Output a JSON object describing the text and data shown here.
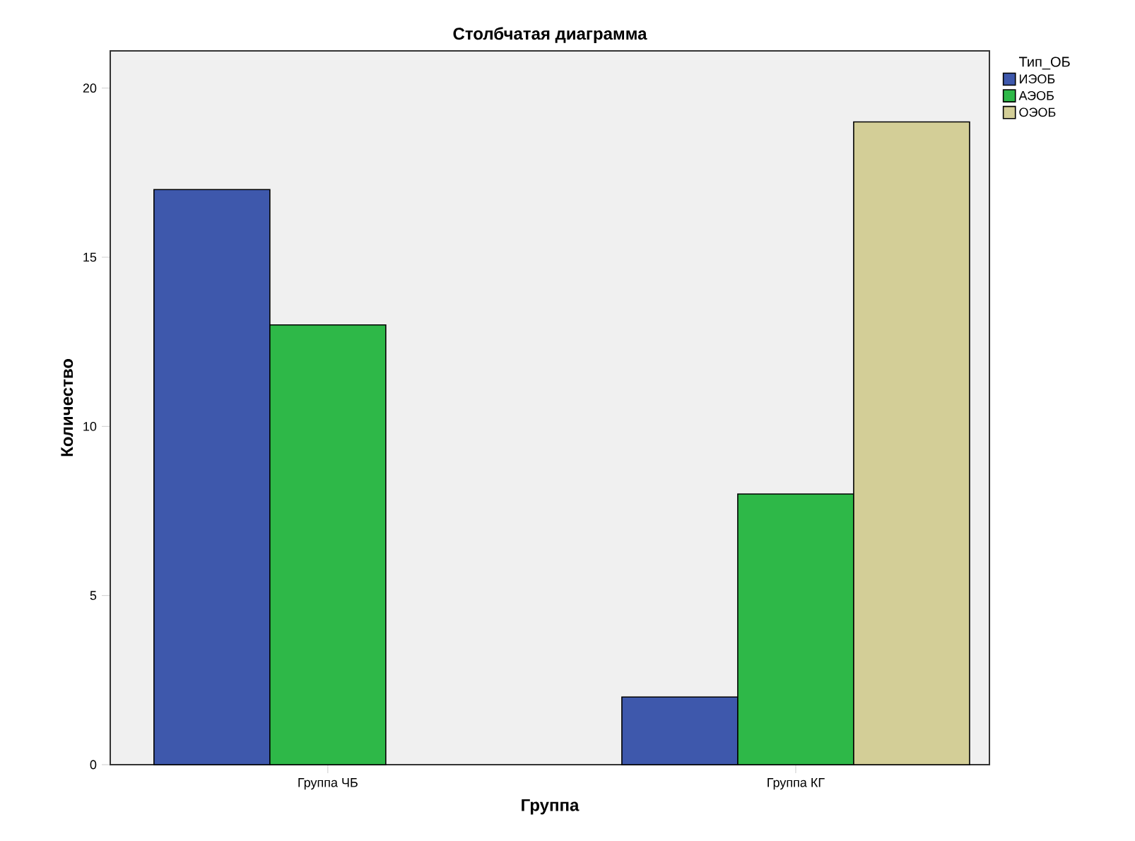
{
  "chart_data": {
    "type": "bar",
    "title": "Столбчатая диаграмма",
    "xlabel": "Группа",
    "ylabel": "Количество",
    "legend_title": "Тип_ОБ",
    "categories": [
      "Группа ЧБ",
      "Группа КГ"
    ],
    "series": [
      {
        "name": "ИЭОБ",
        "color": "#3e58ac",
        "values": [
          17,
          2
        ]
      },
      {
        "name": "АЭОБ",
        "color": "#2eb848",
        "values": [
          13,
          8
        ]
      },
      {
        "name": "ОЭОБ",
        "color": "#d3ce97",
        "values": [
          null,
          19
        ]
      }
    ],
    "ylim": [
      0,
      21.1
    ],
    "yticks": [
      0,
      5,
      10,
      15,
      20
    ],
    "grid": false,
    "legend": "top right"
  }
}
